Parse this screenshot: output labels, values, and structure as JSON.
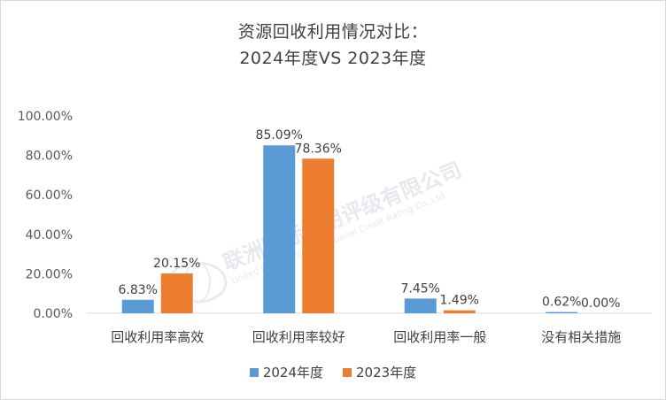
{
  "chart_data": {
    "type": "bar",
    "title_line1": "资源回收利用情况对比：",
    "title_line2": "2024年度VS 2023年度",
    "categories": [
      "回收利用率高效",
      "回收利用率较好",
      "回收利用率一般",
      "没有相关措施"
    ],
    "series": [
      {
        "name": "2024年度",
        "color": "#5b9bd5",
        "values": [
          6.83,
          85.09,
          7.45,
          0.62
        ],
        "labels": [
          "6.83%",
          "85.09%",
          "7.45%",
          "0.62%"
        ]
      },
      {
        "name": "2023年度",
        "color": "#ed7d31",
        "values": [
          20.15,
          78.36,
          1.49,
          0.0
        ],
        "labels": [
          "20.15%",
          "78.36%",
          "1.49%",
          "0.00%"
        ]
      }
    ],
    "yticks": [
      "0.00%",
      "20.00%",
      "40.00%",
      "60.00%",
      "80.00%",
      "100.00%"
    ],
    "ylim": [
      0,
      100
    ],
    "grid": false,
    "legend_position": "bottom"
  },
  "watermark": {
    "text_cn": "联洲国际信用评级有限公司",
    "text_en": "United Continent International Credit Rating Co.,Ltd"
  }
}
